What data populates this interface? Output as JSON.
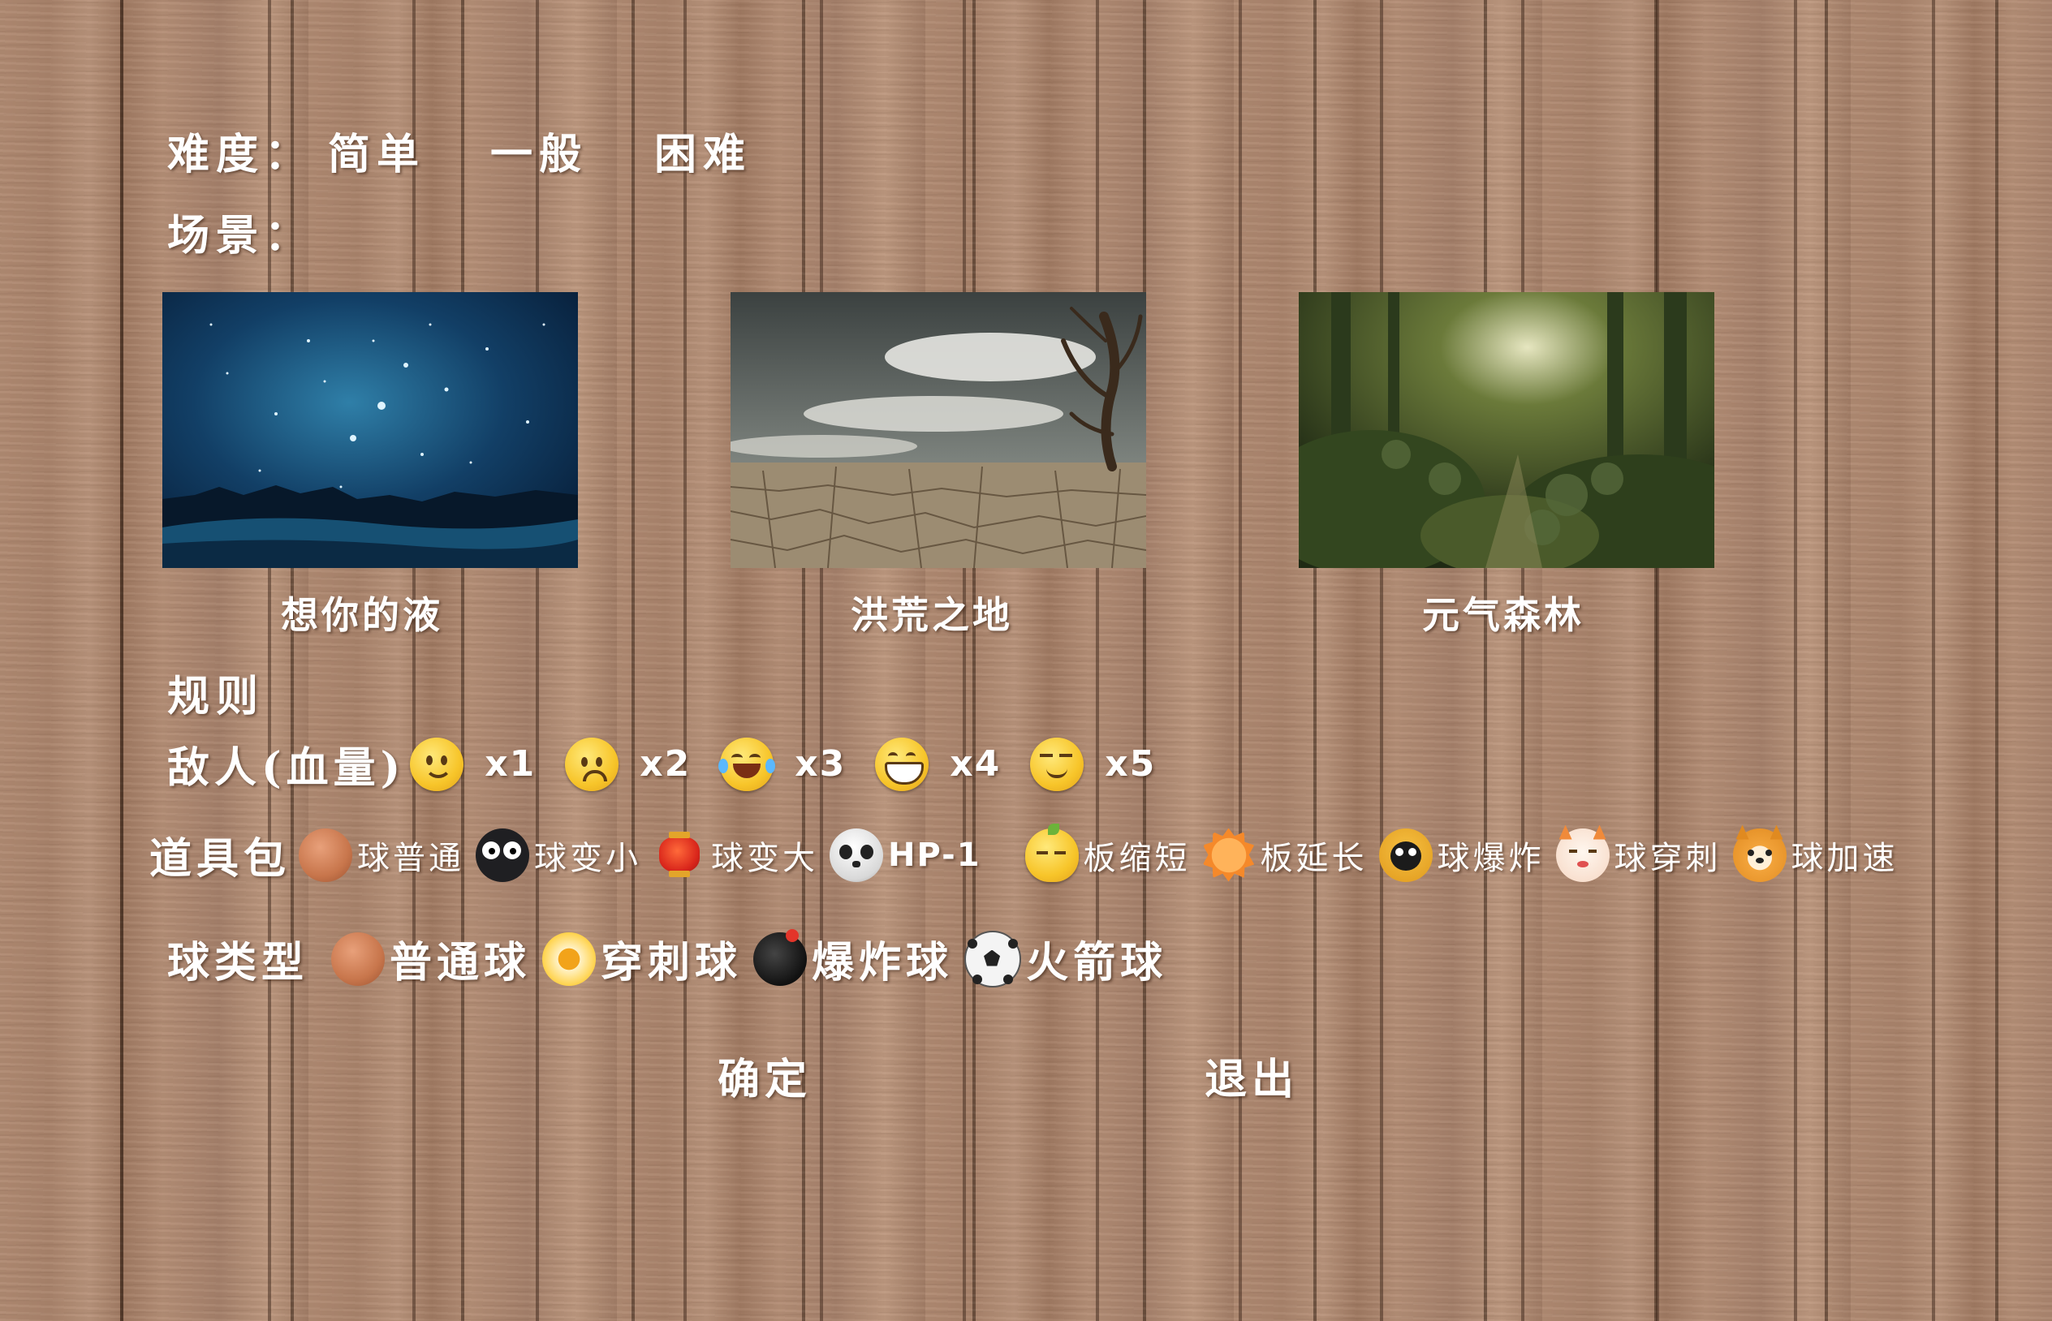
{
  "difficulty": {
    "label": "难度：",
    "options": [
      "简单",
      "一般",
      "困难"
    ]
  },
  "scene": {
    "label": "场景：",
    "items": [
      {
        "name": "想你的液",
        "icon": "starry-night-scene"
      },
      {
        "name": "洪荒之地",
        "icon": "desert-dead-tree-scene"
      },
      {
        "name": "元气森林",
        "icon": "forest-scene"
      }
    ]
  },
  "rules": {
    "label": "规则",
    "enemies": {
      "label": "敌人(血量)",
      "items": [
        {
          "icon": "smile-emoji",
          "count": "x1"
        },
        {
          "icon": "sad-emoji",
          "count": "x2"
        },
        {
          "icon": "laugh-tears-emoji",
          "count": "x3"
        },
        {
          "icon": "grin-emoji",
          "count": "x4"
        },
        {
          "icon": "smirk-emoji",
          "count": "x5"
        }
      ]
    },
    "props": {
      "label": "道具包",
      "items": [
        {
          "icon": "brown-ball-icon",
          "text": "球普通"
        },
        {
          "icon": "black-bug-icon",
          "text": "球变小"
        },
        {
          "icon": "lantern-icon",
          "text": "球变大"
        },
        {
          "icon": "skull-icon",
          "text": "HP-1"
        },
        {
          "icon": "lemon-face-icon",
          "text": "板缩短"
        },
        {
          "icon": "sun-face-icon",
          "text": "板延长"
        },
        {
          "icon": "tiger-face-icon",
          "text": "球爆炸"
        },
        {
          "icon": "lucky-cat-icon",
          "text": "球穿刺"
        },
        {
          "icon": "shiba-dog-icon",
          "text": "球加速"
        }
      ]
    },
    "ball_types": {
      "label": "球类型",
      "items": [
        {
          "icon": "brown-ball-icon",
          "text": "普通球"
        },
        {
          "icon": "flower-ball-icon",
          "text": "穿刺球"
        },
        {
          "icon": "bomb-icon",
          "text": "爆炸球"
        },
        {
          "icon": "soccer-ball-icon",
          "text": "火箭球"
        }
      ]
    }
  },
  "buttons": {
    "confirm": "确定",
    "exit": "退出"
  },
  "colors": {
    "text": "#ffffff",
    "wood": "#ad8870"
  }
}
